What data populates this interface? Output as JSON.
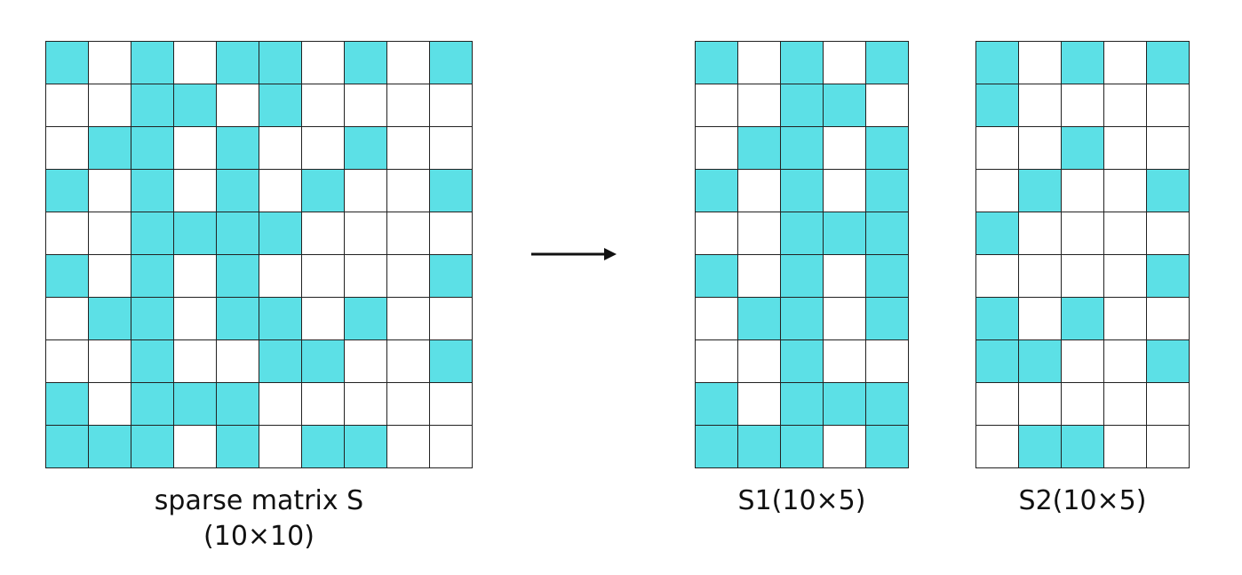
{
  "matrix_s": {
    "rows": [
      [
        1,
        0,
        1,
        0,
        1,
        1,
        0,
        1,
        0,
        1
      ],
      [
        0,
        0,
        1,
        1,
        0,
        1,
        0,
        0,
        0,
        0
      ],
      [
        0,
        1,
        1,
        0,
        1,
        0,
        0,
        1,
        0,
        0
      ],
      [
        1,
        0,
        1,
        0,
        1,
        0,
        1,
        0,
        0,
        1
      ],
      [
        0,
        0,
        1,
        1,
        1,
        1,
        0,
        0,
        0,
        0
      ],
      [
        1,
        0,
        1,
        0,
        1,
        0,
        0,
        0,
        0,
        1
      ],
      [
        0,
        1,
        1,
        0,
        1,
        1,
        0,
        1,
        0,
        0
      ],
      [
        0,
        0,
        1,
        0,
        0,
        1,
        1,
        0,
        0,
        1
      ],
      [
        1,
        0,
        1,
        1,
        1,
        0,
        0,
        0,
        0,
        0
      ],
      [
        1,
        1,
        1,
        0,
        1,
        0,
        1,
        1,
        0,
        0
      ]
    ],
    "caption_line1": "sparse matrix S",
    "caption_line2": "(10×10)"
  },
  "matrix_s1": {
    "rows": [
      [
        1,
        0,
        1,
        0,
        1
      ],
      [
        0,
        0,
        1,
        1,
        0
      ],
      [
        0,
        1,
        1,
        0,
        1
      ],
      [
        1,
        0,
        1,
        0,
        1
      ],
      [
        0,
        0,
        1,
        1,
        1
      ],
      [
        1,
        0,
        1,
        0,
        1
      ],
      [
        0,
        1,
        1,
        0,
        1
      ],
      [
        0,
        0,
        1,
        0,
        0
      ],
      [
        1,
        0,
        1,
        1,
        1
      ],
      [
        1,
        1,
        1,
        0,
        1
      ]
    ],
    "caption": "S1(10×5)"
  },
  "matrix_s2": {
    "rows": [
      [
        1,
        0,
        1,
        0,
        1
      ],
      [
        1,
        0,
        0,
        0,
        0
      ],
      [
        0,
        0,
        1,
        0,
        0
      ],
      [
        0,
        1,
        0,
        0,
        1
      ],
      [
        1,
        0,
        0,
        0,
        0
      ],
      [
        0,
        0,
        0,
        0,
        1
      ],
      [
        1,
        0,
        1,
        0,
        0
      ],
      [
        1,
        1,
        0,
        0,
        1
      ],
      [
        0,
        0,
        0,
        0,
        0
      ],
      [
        0,
        1,
        1,
        0,
        0
      ]
    ],
    "caption": "S2(10×5)"
  },
  "colors": {
    "filled": "#5ce0e6",
    "empty": "#ffffff",
    "border": "#222222"
  },
  "arrow_icon": "right-arrow-icon"
}
